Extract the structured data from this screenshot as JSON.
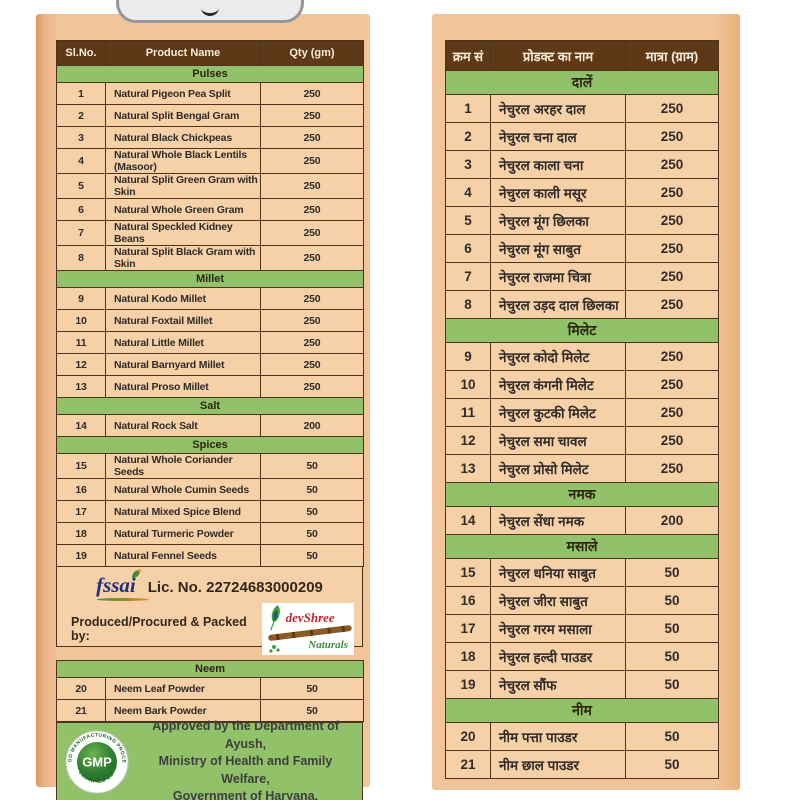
{
  "colors": {
    "header_brown": "#5d3917",
    "section_green": "#91c269",
    "row_tan": "#f6d1a8",
    "panel_tan": "#f1c49a",
    "fssai_navy": "#25317e",
    "devshree_red": "#c0272d",
    "naturals_green": "#3f8c3f",
    "gmp_green": "#2e7d32"
  },
  "left_table": {
    "headers": [
      "Sl.No.",
      "Product Name",
      "Qty (gm)"
    ],
    "sections": [
      {
        "title": "Pulses",
        "rows": [
          [
            "1",
            "Natural Pigeon Pea Split",
            "250"
          ],
          [
            "2",
            "Natural Split Bengal Gram",
            "250"
          ],
          [
            "3",
            "Natural Black Chickpeas",
            "250"
          ],
          [
            "4",
            "Natural Whole Black Lentils (Masoor)",
            "250"
          ],
          [
            "5",
            "Natural Split Green Gram with Skin",
            "250"
          ],
          [
            "6",
            "Natural Whole Green Gram",
            "250"
          ],
          [
            "7",
            "Natural Speckled Kidney Beans",
            "250"
          ],
          [
            "8",
            "Natural Split Black Gram with Skin",
            "250"
          ]
        ]
      },
      {
        "title": "Millet",
        "rows": [
          [
            "9",
            "Natural Kodo Millet",
            "250"
          ],
          [
            "10",
            "Natural Foxtail Millet",
            "250"
          ],
          [
            "11",
            "Natural Little Millet",
            "250"
          ],
          [
            "12",
            "Natural Barnyard Millet",
            "250"
          ],
          [
            "13",
            "Natural Proso Millet",
            "250"
          ]
        ]
      },
      {
        "title": "Salt",
        "rows": [
          [
            "14",
            "Natural Rock Salt",
            "200"
          ]
        ]
      },
      {
        "title": "Spices",
        "rows": [
          [
            "15",
            "Natural Whole Coriander Seeds",
            "50"
          ],
          [
            "16",
            "Natural Whole Cumin Seeds",
            "50"
          ],
          [
            "17",
            "Natural Mixed Spice Blend",
            "50"
          ],
          [
            "18",
            "Natural Turmeric Powder",
            "50"
          ],
          [
            "19",
            "Natural Fennel Seeds",
            "50"
          ]
        ]
      }
    ]
  },
  "left_neem_table": {
    "sections": [
      {
        "title": "Neem",
        "rows": [
          [
            "20",
            "Neem Leaf Powder",
            "50"
          ],
          [
            "21",
            "Neem Bark Powder",
            "50"
          ]
        ]
      }
    ]
  },
  "fssai": {
    "logo_text": "fssai",
    "license": "Lic. No. 22724683000209",
    "packed_by_label": "Produced/Procured  & Packed by:",
    "brand_name": "devShree",
    "brand_sub": "Naturals"
  },
  "footer": {
    "gmp_text": "GMP",
    "seal_top": "GOOD MANUFACTURING PROCESS",
    "seal_bottom": "• CERTIFIED CO. •",
    "lines": [
      "Approved by the Department of Ayush,",
      "Ministry of Health and Family Welfare,",
      "Government of Haryana."
    ]
  },
  "right_table": {
    "headers": [
      "क्रम सं",
      "प्रोडक्ट का नाम",
      "मात्रा (ग्राम)"
    ],
    "sections": [
      {
        "title": "दालें",
        "rows": [
          [
            "1",
            "नेचुरल अरहर दाल",
            "250"
          ],
          [
            "2",
            "नेचुरल चना दाल",
            "250"
          ],
          [
            "3",
            "नेचुरल काला चना",
            "250"
          ],
          [
            "4",
            "नेचुरल  काली मसूर",
            "250"
          ],
          [
            "5",
            "नेचुरल मूंग छिलका",
            "250"
          ],
          [
            "6",
            "नेचुरल मूंग साबुत",
            "250"
          ],
          [
            "7",
            "नेचुरल राजमा चित्रा",
            "250"
          ],
          [
            "8",
            "नेचुरल उड़द दाल छिलका",
            "250"
          ]
        ]
      },
      {
        "title": "मिलेट",
        "rows": [
          [
            "9",
            "नेचुरल कोदो मिलेट",
            "250"
          ],
          [
            "10",
            "नेचुरल कंगनी मिलेट",
            "250"
          ],
          [
            "11",
            "नेचुरल कुटकी मिलेट",
            "250"
          ],
          [
            "12",
            "नेचुरल समा चावल",
            "250"
          ],
          [
            "13",
            "नेचुरल प्रोसो मिलेट",
            "250"
          ]
        ]
      },
      {
        "title": "नमक",
        "rows": [
          [
            "14",
            "नेचुरल सेंधा नमक",
            "200"
          ]
        ]
      },
      {
        "title": "मसाले",
        "rows": [
          [
            "15",
            "नेचुरल धनिया साबुत",
            "50"
          ],
          [
            "16",
            "नेचुरल जीरा साबुत",
            "50"
          ],
          [
            "17",
            "नेचुरल गरम मसाला",
            "50"
          ],
          [
            "18",
            "नेचुरल हल्दी पाउडर",
            "50"
          ],
          [
            "19",
            "नेचुरल सौंफ",
            "50"
          ]
        ]
      },
      {
        "title": "नीम",
        "rows": [
          [
            "20",
            "नीम पत्ता पाउडर",
            "50"
          ],
          [
            "21",
            "नीम छाल पाउडर",
            "50"
          ]
        ]
      }
    ]
  }
}
